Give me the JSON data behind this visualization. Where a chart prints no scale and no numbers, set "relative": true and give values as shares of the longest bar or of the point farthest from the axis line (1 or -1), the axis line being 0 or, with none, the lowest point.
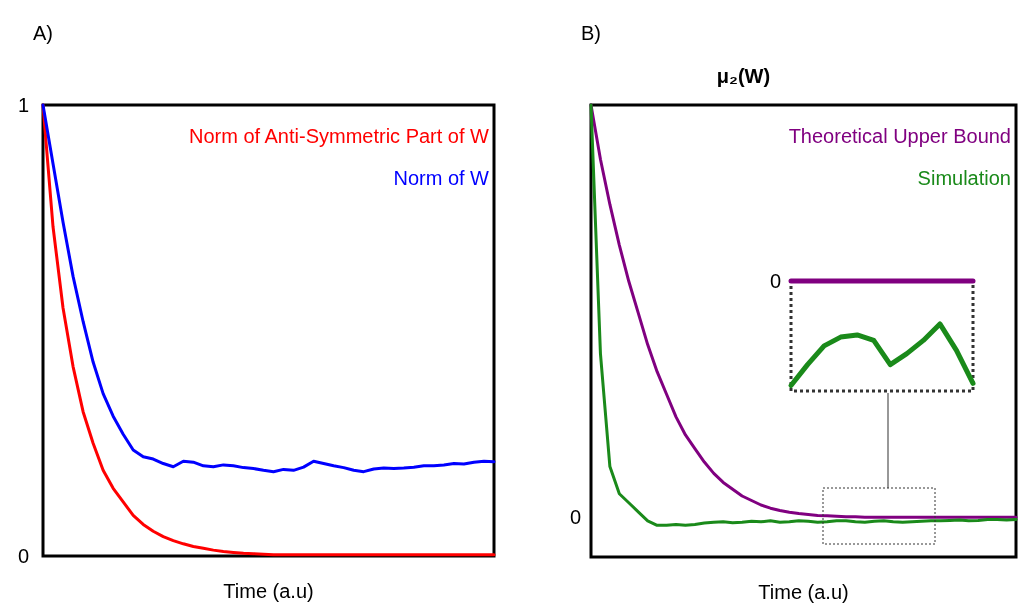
{
  "chart_data": [
    {
      "type": "line",
      "annotations": [
        "A)"
      ],
      "xlabel": "Time (a.u)",
      "categories": [
        null,
        null,
        null,
        null,
        null,
        null,
        null,
        null,
        null,
        null,
        null,
        null,
        null,
        null,
        null,
        null,
        null,
        null,
        null,
        null,
        null,
        null,
        null,
        null,
        null,
        null,
        null,
        null,
        null,
        null,
        null,
        null,
        null,
        null,
        null,
        null,
        null,
        null,
        null,
        null,
        null,
        null,
        null,
        null,
        null,
        null
      ],
      "ylim": [
        0,
        1
      ],
      "yticks": [
        0,
        1
      ],
      "tick_labels": "y",
      "legend": "top right",
      "grid": false,
      "series": [
        {
          "name": "Norm of Anti-Symmetric Part of W",
          "color": "#ff0000",
          "values": [
            1,
            0.73,
            0.55,
            0.42,
            0.32,
            0.25,
            0.19,
            0.15,
            0.12,
            0.09,
            0.07,
            0.055,
            0.043,
            0.034,
            0.027,
            0.021,
            0.017,
            0.013,
            0.01,
            0.008,
            0.006,
            0.005,
            0.004,
            0.003,
            0.003,
            0.003,
            0.003,
            0.003,
            0.003,
            0.003,
            0.003,
            0.003,
            0.003,
            0.003,
            0.003,
            0.003,
            0.003,
            0.003,
            0.003,
            0.003,
            0.003,
            0.003,
            0.003,
            0.003,
            0.003,
            0.003
          ]
        },
        {
          "name": "Norm of W",
          "color": "#0000ff",
          "values": [
            1,
            0.87,
            0.74,
            0.62,
            0.52,
            0.43,
            0.36,
            0.31,
            0.27,
            0.235,
            0.22,
            0.215,
            0.205,
            0.198,
            0.21,
            0.208,
            0.2,
            0.198,
            0.202,
            0.2,
            0.196,
            0.194,
            0.19,
            0.187,
            0.192,
            0.19,
            0.197,
            0.21,
            0.205,
            0.2,
            0.196,
            0.19,
            0.187,
            0.193,
            0.195,
            0.194,
            0.195,
            0.197,
            0.2,
            0.2,
            0.202,
            0.205,
            0.204,
            0.208,
            0.21,
            0.209
          ]
        }
      ]
    },
    {
      "type": "line",
      "title": "μ₂(W)",
      "annotations": [
        "B)",
        "0"
      ],
      "xlabel": "Time (a.u)",
      "relative": true,
      "categories": [
        null,
        null,
        null,
        null,
        null,
        null,
        null,
        null,
        null,
        null,
        null,
        null,
        null,
        null,
        null,
        null,
        null,
        null,
        null,
        null,
        null,
        null,
        null,
        null,
        null,
        null,
        null,
        null,
        null,
        null,
        null,
        null,
        null,
        null,
        null,
        null,
        null,
        null,
        null,
        null,
        null,
        null,
        null,
        null,
        null,
        null
      ],
      "legend": "top right",
      "grid": false,
      "series": [
        {
          "name": "Theoretical Upper Bound",
          "color": "#800080",
          "values": [
            1,
            0.88,
            0.78,
            0.69,
            0.61,
            0.54,
            0.47,
            0.41,
            0.36,
            0.31,
            0.27,
            0.24,
            0.21,
            0.185,
            0.165,
            0.15,
            0.135,
            0.125,
            0.115,
            0.108,
            0.103,
            0.099,
            0.096,
            0.094,
            0.092,
            0.091,
            0.09,
            0.089,
            0.089,
            0.088,
            0.088,
            0.088,
            0.088,
            0.088,
            0.088,
            0.088,
            0.088,
            0.088,
            0.088,
            0.088,
            0.088,
            0.088,
            0.088,
            0.088,
            0.088,
            0.088
          ]
        },
        {
          "name": "Simulation",
          "color": "#1a8a1a",
          "values": [
            1,
            0.45,
            0.2,
            0.14,
            0.12,
            0.1,
            0.08,
            0.07,
            0.07,
            0.072,
            0.07,
            0.072,
            0.075,
            0.077,
            0.078,
            0.076,
            0.077,
            0.079,
            0.078,
            0.08,
            0.077,
            0.078,
            0.08,
            0.079,
            0.077,
            0.078,
            0.08,
            0.08,
            0.078,
            0.077,
            0.079,
            0.08,
            0.078,
            0.077,
            0.078,
            0.079,
            0.08,
            0.08,
            0.081,
            0.082,
            0.08,
            0.081,
            0.083,
            0.083,
            0.082,
            0.083
          ]
        }
      ]
    },
    {
      "type": "line",
      "annotations": [
        "0"
      ],
      "relative": true,
      "categories": [
        null,
        null,
        null,
        null,
        null,
        null,
        null,
        null,
        null,
        null,
        null,
        null
      ],
      "series": [
        {
          "color": "#800080",
          "values": [
            1,
            1,
            1,
            1,
            1,
            1,
            1,
            1,
            1,
            1,
            1,
            1
          ]
        },
        {
          "color": "#1a8a1a",
          "values": [
            0.05,
            0.24,
            0.41,
            0.49,
            0.51,
            0.46,
            0.24,
            0.34,
            0.46,
            0.61,
            0.37,
            0.07
          ]
        }
      ]
    }
  ]
}
